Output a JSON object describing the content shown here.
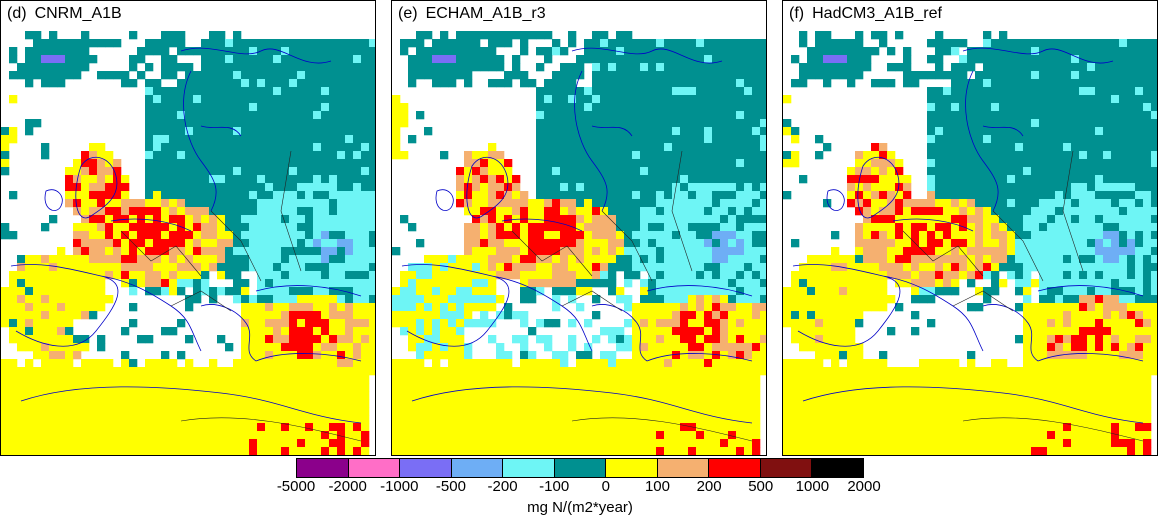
{
  "panels": [
    {
      "tag": "(d)",
      "title": "CNRM_A1B",
      "variant": 0
    },
    {
      "tag": "(e)",
      "title": "ECHAM_A1B_r3",
      "variant": 1
    },
    {
      "tag": "(f)",
      "title": "HadCM3_A1B_ref",
      "variant": 2
    }
  ],
  "legend": {
    "ticks": [
      "-5000",
      "-2000",
      "-1000",
      "-500",
      "-200",
      "-100",
      "0",
      "100",
      "200",
      "500",
      "1000",
      "2000"
    ],
    "colors": [
      "#8B008B",
      "#FF6EC7",
      "#7A6EF5",
      "#6EAEF5",
      "#6EF5F5",
      "#009090",
      "#FFFF00",
      "#F5B070",
      "#FF0000",
      "#801010",
      "#000000"
    ],
    "unit": "mg N/(m2*year)"
  },
  "colors": {
    "teal": "#009090",
    "light_blue": "#6EF5F5",
    "mid_blue": "#6EAEF5",
    "periwinkle": "#7A6EF5",
    "yellow": "#FFFF00",
    "orange": "#F5B070",
    "red": "#FF0000",
    "coast": "#0000c8",
    "border": "#000000"
  }
}
